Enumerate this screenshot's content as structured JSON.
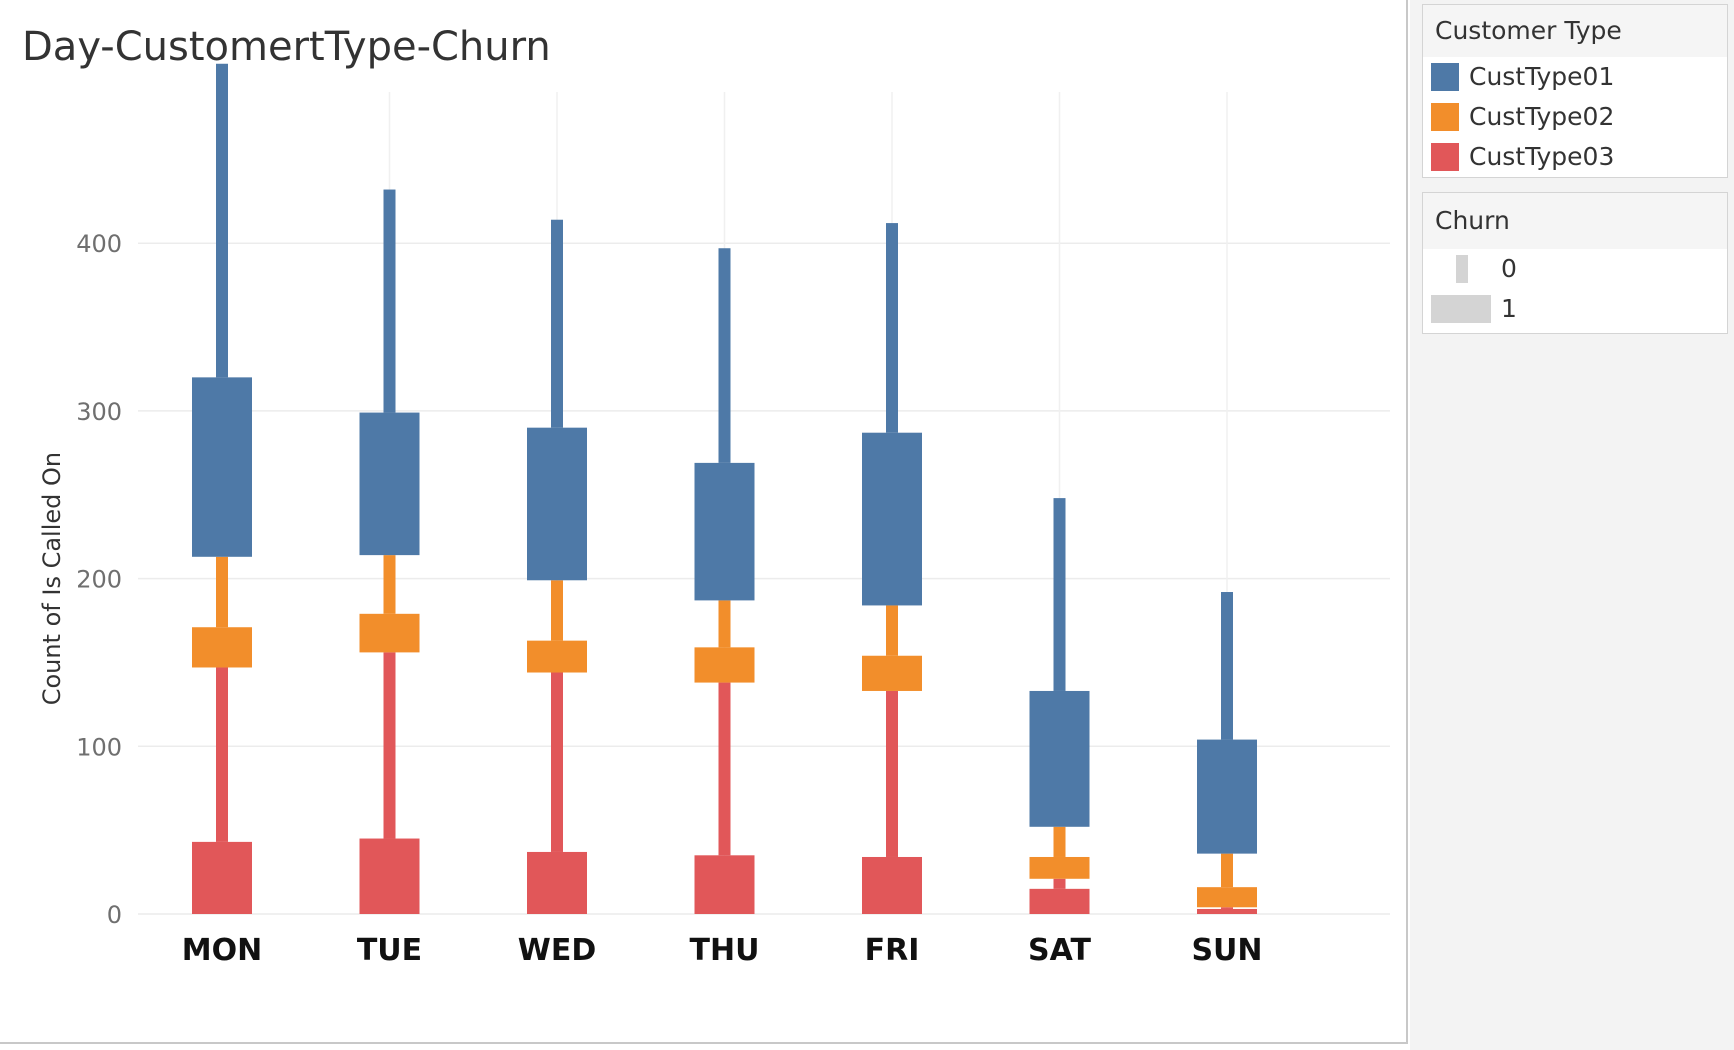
{
  "chart_data": {
    "type": "bar",
    "title": "Day-CustomertType-Churn",
    "ylabel": "Count of Is Called On",
    "xlabel": "",
    "ylim": [
      0,
      480
    ],
    "yticks": [
      0,
      100,
      200,
      300,
      400
    ],
    "grid": true,
    "stacked": true,
    "categories": [
      "MON",
      "TUE",
      "WED",
      "THU",
      "FRI",
      "SAT",
      "SUN"
    ],
    "color_legend": {
      "title": "Customer Type",
      "entries": [
        "CustType01",
        "CustType02",
        "CustType03"
      ]
    },
    "size_legend": {
      "title": "Churn",
      "entries": [
        "0",
        "1"
      ]
    },
    "series": [
      {
        "name": "CustType03",
        "color": "#e15759",
        "churn_0": [
          104,
          111,
          107,
          103,
          99,
          6,
          1
        ],
        "churn_1": [
          43,
          45,
          37,
          35,
          34,
          15,
          3
        ]
      },
      {
        "name": "CustType02",
        "color": "#f28e2b",
        "churn_0": [
          42,
          35,
          36,
          28,
          30,
          18,
          20
        ],
        "churn_1": [
          24,
          23,
          19,
          21,
          21,
          13,
          12
        ]
      },
      {
        "name": "CustType01",
        "color": "#4e79a7",
        "churn_0": [
          187,
          133,
          124,
          128,
          125,
          115,
          88
        ],
        "churn_1": [
          107,
          85,
          91,
          82,
          103,
          81,
          68
        ]
      }
    ]
  }
}
